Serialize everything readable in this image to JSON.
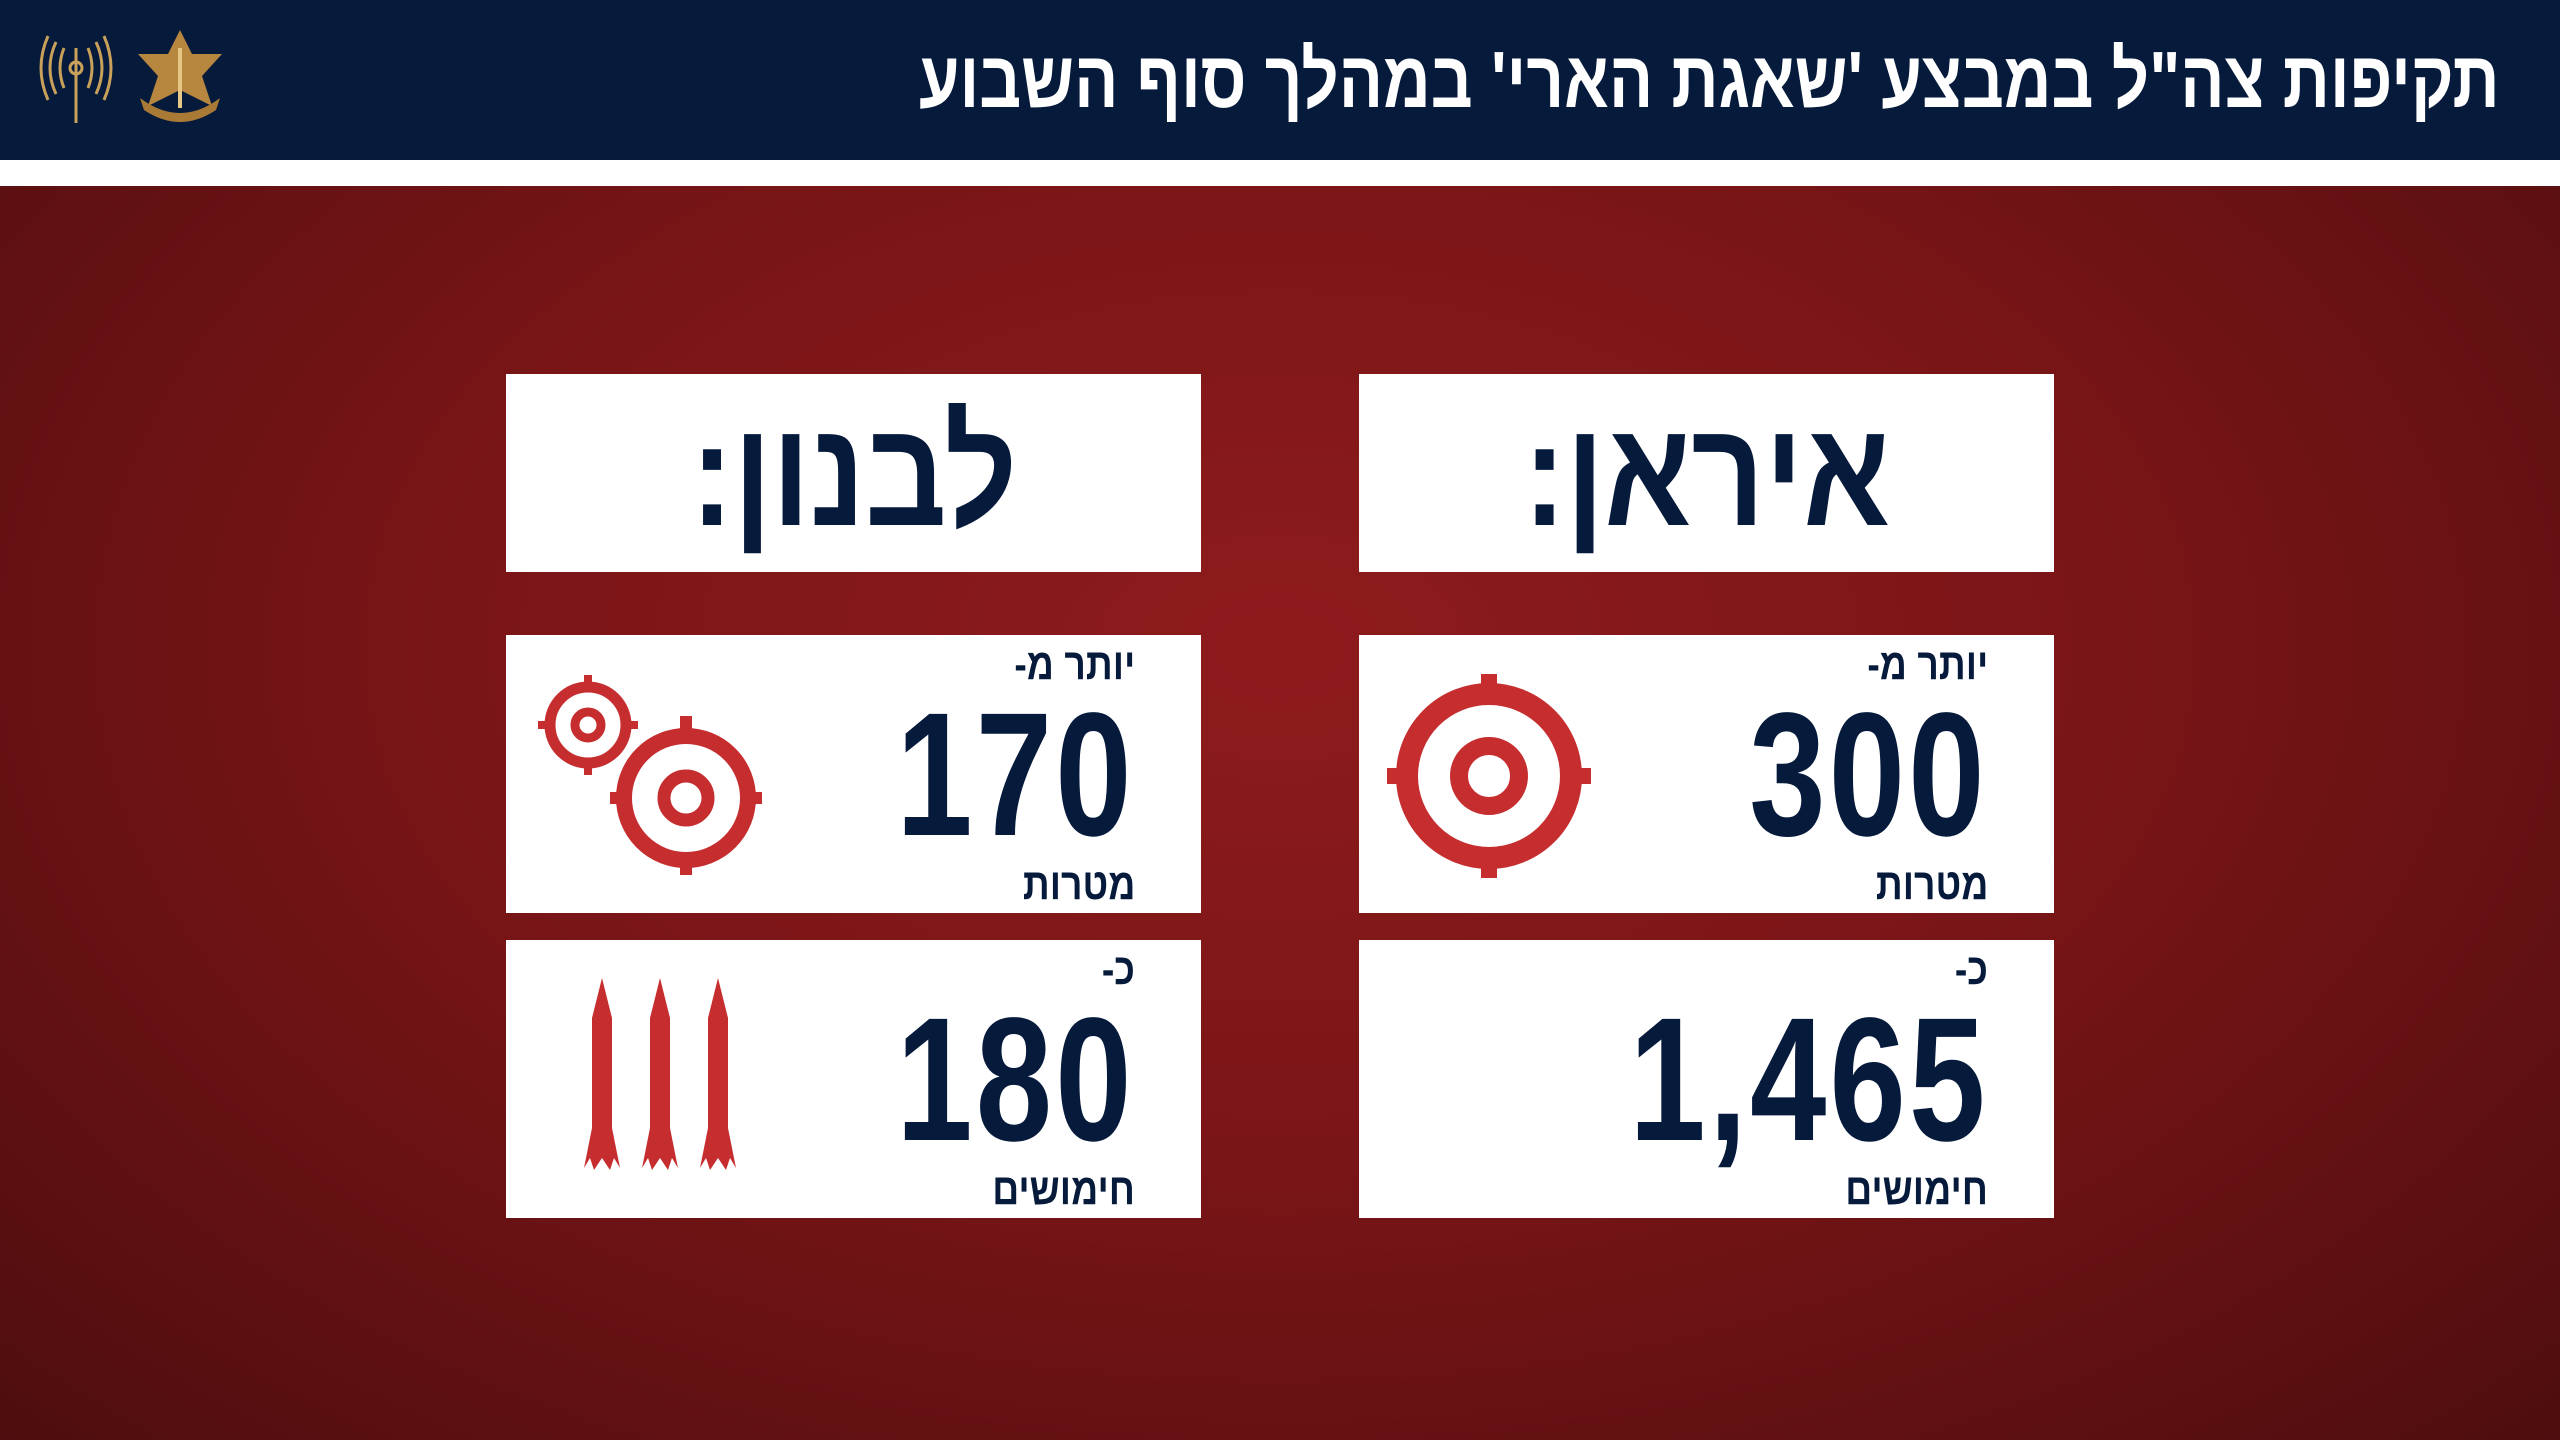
{
  "header": {
    "title": "תקיפות צה\"ל במבצע 'שאגת הארי' במהלך סוף השבוע",
    "logos": [
      "idf-spokesperson-logo",
      "idf-emblem"
    ]
  },
  "colors": {
    "navy": "#061a3b",
    "red": "#c62d2f",
    "background": "#7a1517"
  },
  "iran": {
    "label": "איראן:",
    "targets": {
      "prefix": "יותר מ-",
      "value": "300",
      "unit": "מטרות",
      "icon": "target-icon"
    },
    "munitions": {
      "prefix": "כ-",
      "value": "1,465",
      "unit": "חימושים"
    }
  },
  "lebanon": {
    "label": "לבנון:",
    "targets": {
      "prefix": "יותר מ-",
      "value": "170",
      "unit": "מטרות",
      "icon": "two-targets-icon"
    },
    "munitions": {
      "prefix": "כ-",
      "value": "180",
      "unit": "חימושים",
      "icon": "missiles-icon"
    }
  }
}
